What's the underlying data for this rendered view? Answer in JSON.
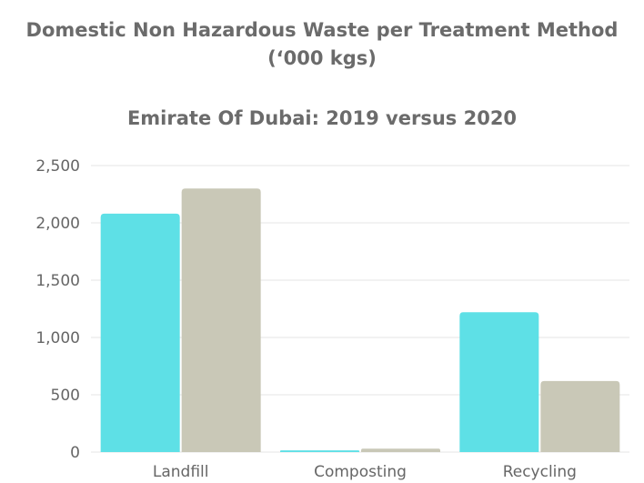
{
  "chart_title": {
    "line1": "Domestic Non Hazardous Waste per Treatment Method",
    "line2": "(‘000 kgs)"
  },
  "chart_subtitle": "Emirate Of Dubai: 2019 versus 2020",
  "colors": {
    "series_2019": "#5ee0e6",
    "series_2020": "#c9c8b7",
    "title": "#6b6b6b",
    "grid": "#e6e6e6"
  },
  "chart_data": {
    "type": "bar",
    "title": "Domestic Non Hazardous Waste per Treatment Method (‘000 kgs)",
    "subtitle": "Emirate Of Dubai: 2019 versus 2020",
    "categories": [
      "Landfill",
      "Composting",
      "Recycling"
    ],
    "series": [
      {
        "values": [
          2080,
          15,
          1220
        ]
      },
      {
        "values": [
          2300,
          30,
          620
        ]
      }
    ],
    "ylim": [
      0,
      2500
    ],
    "yticks": [
      0,
      500,
      1000,
      1500,
      2000,
      2500
    ],
    "ytick_labels": [
      "0",
      "500",
      "1,000",
      "1,500",
      "2,000",
      "2,500"
    ],
    "grid": true,
    "legend": "none"
  }
}
